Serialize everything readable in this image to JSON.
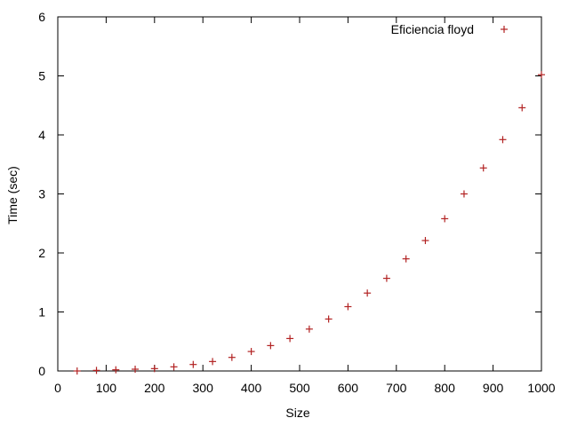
{
  "chart_data": {
    "type": "scatter",
    "title": "",
    "xlabel": "Size",
    "ylabel": "Time (sec)",
    "xlim": [
      0,
      1000
    ],
    "ylim": [
      0,
      6
    ],
    "xticks": [
      0,
      100,
      200,
      300,
      400,
      500,
      600,
      700,
      800,
      900,
      1000
    ],
    "yticks": [
      0,
      1,
      2,
      3,
      4,
      5,
      6
    ],
    "xtick_labels": [
      "0",
      "100",
      "200",
      "300",
      "400",
      "500",
      "600",
      "700",
      "800",
      "900",
      "1000"
    ],
    "ytick_labels": [
      "0",
      "1",
      "2",
      "3",
      "4",
      "5",
      "6"
    ],
    "grid": false,
    "legend_position": "top-right",
    "series": [
      {
        "name": "Eficiencia floyd",
        "color": "#b22222",
        "marker": "plus",
        "x": [
          40,
          80,
          120,
          160,
          200,
          240,
          280,
          320,
          360,
          400,
          440,
          480,
          520,
          560,
          600,
          640,
          680,
          720,
          760,
          800,
          840,
          880,
          920,
          960,
          1000
        ],
        "y": [
          0.0,
          0.01,
          0.02,
          0.03,
          0.04,
          0.07,
          0.11,
          0.16,
          0.23,
          0.33,
          0.43,
          0.55,
          0.71,
          0.88,
          1.09,
          1.32,
          1.57,
          1.9,
          2.21,
          2.58,
          3.0,
          3.44,
          3.92,
          4.46,
          5.02
        ]
      }
    ]
  }
}
